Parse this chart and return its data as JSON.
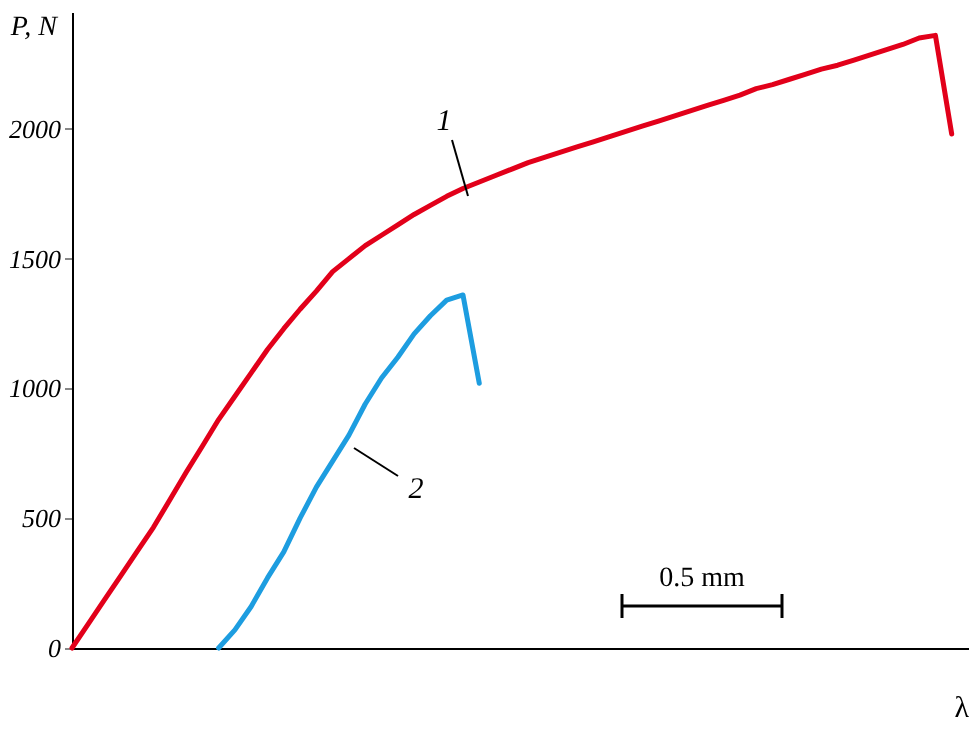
{
  "chart_data": {
    "type": "line",
    "xlabel": "λ",
    "ylabel": "P, N",
    "categories": [
      null,
      null,
      null,
      null,
      null,
      null,
      null,
      null,
      null,
      null,
      null,
      null,
      null,
      null,
      null,
      null,
      null,
      null,
      null,
      null,
      null,
      null,
      null,
      null,
      null,
      null,
      null,
      null,
      null,
      null,
      null,
      null,
      null,
      null,
      null,
      null,
      null,
      null,
      null,
      null,
      null,
      null,
      null,
      null,
      null,
      null,
      null,
      null,
      null,
      null,
      null,
      null,
      null,
      null,
      null,
      null
    ],
    "ylim": [
      0,
      2450
    ],
    "yticks": [
      0,
      500,
      1000,
      1500,
      2000
    ],
    "tick_labels": "y",
    "grid": false,
    "marker": "none",
    "line_style": "solid",
    "series": [
      {
        "color": "#e2001a",
        "values": [
          0,
          93,
          186,
          279,
          372,
          465,
          570,
          676,
          777,
          880,
          970,
          1060,
          1150,
          1230,
          1305,
          1375,
          1450,
          1500,
          1550,
          1590,
          1630,
          1670,
          1705,
          1740,
          1770,
          1795,
          1820,
          1845,
          1870,
          1890,
          1910,
          1930,
          1950,
          1970,
          1990,
          2010,
          2030,
          2050,
          2070,
          2090,
          2110,
          2130,
          2155,
          2170,
          2190,
          2210,
          2230,
          2245,
          2265,
          2285,
          2305,
          2325,
          2350,
          2360,
          1980,
          null
        ]
      },
      {
        "color": "#1d9de0",
        "values": [
          null,
          null,
          null,
          null,
          null,
          null,
          null,
          null,
          null,
          0,
          70,
          160,
          270,
          370,
          500,
          620,
          720,
          820,
          940,
          1040,
          1120,
          1210,
          1280,
          1340,
          1360,
          1020,
          null,
          null,
          null,
          null,
          null,
          null,
          null,
          null,
          null,
          null,
          null,
          null,
          null,
          null,
          null,
          null,
          null,
          null,
          null,
          null,
          null,
          null,
          null,
          null,
          null,
          null,
          null,
          null,
          null,
          null
        ]
      }
    ],
    "annotations": [
      "1",
      "2",
      "0.5 mm"
    ]
  }
}
